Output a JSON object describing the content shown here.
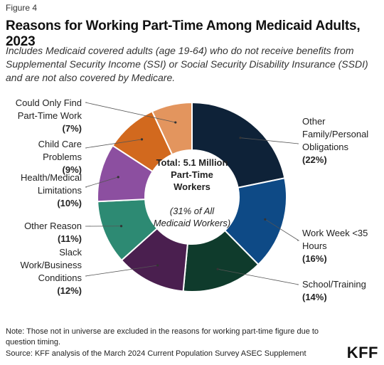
{
  "figure_label": "Figure 4",
  "title": "Reasons for Working Part-Time Among Medicaid Adults, 2023",
  "subtitle": "Includes Medicaid covered adults (age 19-64) who do not receive benefits from Supplemental Security Income (SSI) or Social Security Disability Insurance (SSDI) and are not also covered by Medicare.",
  "note": "Note: Those not in universe are excluded in the reasons for working part-time figure due to question timing.",
  "source": "Source: KFF analysis of the March 2024 Current Population Survey ASEC Supplement",
  "logo": "KFF",
  "chart_data": {
    "type": "pie",
    "donut": true,
    "center_text": [
      "Total: 5.1 Million",
      "Part-Time",
      "Workers",
      "",
      "(31% of All",
      "Medicaid Workers)"
    ],
    "slices": [
      {
        "label": "Other Family/Personal Obligations",
        "value": 22,
        "value_label": "(22%)",
        "color": "#0e2238",
        "label_lines": [
          "Other",
          "Family/Personal",
          "Obligations"
        ]
      },
      {
        "label": "Work Week <35 Hours",
        "value": 16,
        "value_label": "(16%)",
        "color": "#0e4a86",
        "label_lines": [
          "Work Week <35",
          "Hours"
        ]
      },
      {
        "label": "School/Training",
        "value": 14,
        "value_label": "(14%)",
        "color": "#0f3b2c",
        "label_lines": [
          "School/Training"
        ]
      },
      {
        "label": "Slack Work/Business Conditions",
        "value": 12,
        "value_label": "(12%)",
        "color": "#4a1f4f",
        "label_lines": [
          "Slack",
          "Work/Business",
          "Conditions"
        ]
      },
      {
        "label": "Other Reason",
        "value": 11,
        "value_label": "(11%)",
        "color": "#2d8a73",
        "label_lines": [
          "Other Reason"
        ]
      },
      {
        "label": "Health/Medical Limitations",
        "value": 10,
        "value_label": "(10%)",
        "color": "#8c4fa0",
        "label_lines": [
          "Health/Medical",
          "Limitations"
        ]
      },
      {
        "label": "Child Care Problems",
        "value": 9,
        "value_label": "(9%)",
        "color": "#d2691e",
        "label_lines": [
          "Child Care",
          "Problems"
        ]
      },
      {
        "label": "Could Only Find Part-Time Work",
        "value": 7,
        "value_label": "(7%)",
        "color": "#e3955e",
        "label_lines": [
          "Could Only Find",
          "Part-Time Work"
        ]
      }
    ]
  }
}
